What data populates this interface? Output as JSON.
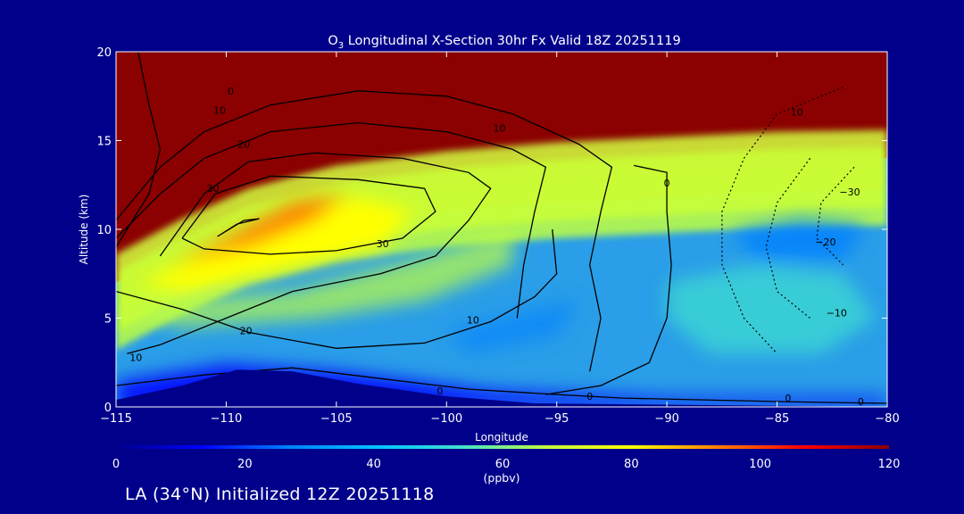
{
  "chart_data": {
    "type": "heatmap",
    "title": {
      "species": "O",
      "subscript": "3",
      "rest": " Longitudinal X-Section 30hr  Fx Valid 18Z 20251119"
    },
    "xlabel": "Longitude",
    "ylabel": "Altitude (km)",
    "xlim": [
      -115,
      -80
    ],
    "ylim": [
      0,
      20
    ],
    "xticks": [
      -115,
      -110,
      -105,
      -100,
      -95,
      -90,
      -85,
      -80
    ],
    "xtick_labels": [
      "−115",
      "−110",
      "−105",
      "−100",
      "−95",
      "−90",
      "−85",
      "−80"
    ],
    "yticks": [
      0,
      5,
      10,
      15,
      20
    ],
    "ytick_labels": [
      "0",
      "5",
      "10",
      "15",
      "20"
    ],
    "colorbar": {
      "label": "(ppbv)",
      "min": 0,
      "max": 120,
      "ticks": [
        0,
        20,
        40,
        60,
        80,
        100,
        120
      ],
      "tick_labels": [
        "0",
        "20",
        "40",
        "60",
        "80",
        "100",
        "120"
      ],
      "colors": [
        "#00008b",
        "#0000ff",
        "#0080ff",
        "#00c0ff",
        "#40e0d0",
        "#c0ff40",
        "#ffff00",
        "#ff8000",
        "#ff0000",
        "#8b0000"
      ]
    },
    "field": {
      "description": "Ozone mixing ratio (ppbv) vs longitude and altitude",
      "tropopause_km_by_longitude": [
        {
          "lon": -115,
          "alt": 7
        },
        {
          "lon": -112,
          "alt": 9
        },
        {
          "lon": -109,
          "alt": 10.7
        },
        {
          "lon": -105,
          "alt": 12
        },
        {
          "lon": -100,
          "alt": 12.8
        },
        {
          "lon": -95,
          "alt": 13.3
        },
        {
          "lon": -90,
          "alt": 13.6
        },
        {
          "lon": -85,
          "alt": 13.9
        },
        {
          "lon": -80,
          "alt": 14
        }
      ],
      "stratospheric_value": 120,
      "tropospheric_value": 45,
      "terrain_km": [
        {
          "lon": -115,
          "alt": 0.4
        },
        {
          "lon": -112,
          "alt": 1.2
        },
        {
          "lon": -109.5,
          "alt": 2.1
        },
        {
          "lon": -107,
          "alt": 2.0
        },
        {
          "lon": -104,
          "alt": 1.3
        },
        {
          "lon": -100,
          "alt": 0.6
        },
        {
          "lon": -96,
          "alt": 0.2
        },
        {
          "lon": -80,
          "alt": 0
        }
      ]
    },
    "contour_labels": [
      {
        "text": "0",
        "lon": -109.8,
        "alt": 17.6
      },
      {
        "text": "10",
        "lon": -110.3,
        "alt": 16.5
      },
      {
        "text": "20",
        "lon": -109.2,
        "alt": 14.6
      },
      {
        "text": "30",
        "lon": -110.6,
        "alt": 12.1
      },
      {
        "text": "10",
        "lon": -97.6,
        "alt": 15.5
      },
      {
        "text": "0",
        "lon": -90,
        "alt": 12.4
      },
      {
        "text": "30",
        "lon": -102.9,
        "alt": 9.0
      },
      {
        "text": "20",
        "lon": -109.1,
        "alt": 4.1
      },
      {
        "text": "10",
        "lon": -114.1,
        "alt": 2.6
      },
      {
        "text": "10",
        "lon": -98.8,
        "alt": 4.7
      },
      {
        "text": "0",
        "lon": -100.3,
        "alt": 0.7
      },
      {
        "text": "0",
        "lon": -93.5,
        "alt": 0.4
      },
      {
        "text": "0",
        "lon": -84.5,
        "alt": 0.3
      },
      {
        "text": "0",
        "lon": -81.2,
        "alt": 0.1
      },
      {
        "text": "10",
        "lon": -84.1,
        "alt": 16.4
      },
      {
        "text": "−30",
        "lon": -81.7,
        "alt": 11.9
      },
      {
        "text": "−20",
        "lon": -82.8,
        "alt": 9.1
      },
      {
        "text": "−10",
        "lon": -82.3,
        "alt": 5.1
      }
    ]
  },
  "footer": "LA (34°N) Initialized 12Z 20251118"
}
